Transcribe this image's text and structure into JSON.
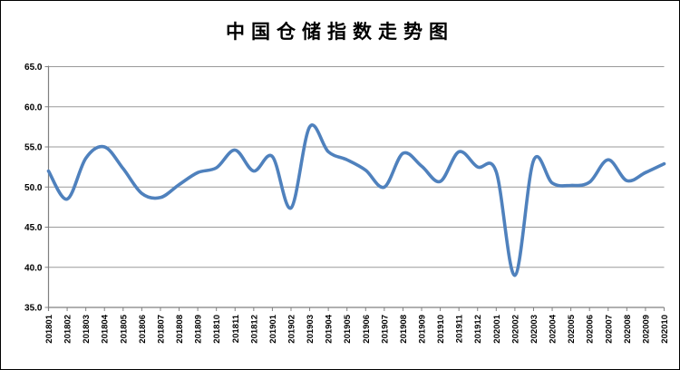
{
  "chart_data": {
    "type": "line",
    "title": "中国仓储指数走势图",
    "xlabel": "",
    "ylabel": "",
    "categories": [
      "201801",
      "201802",
      "201803",
      "201804",
      "201805",
      "201806",
      "201807",
      "201808",
      "201809",
      "201810",
      "201811",
      "201812",
      "201901",
      "201902",
      "201903",
      "201904",
      "201905",
      "201906",
      "201907",
      "201908",
      "201909",
      "201910",
      "201911",
      "201912",
      "202001",
      "202002",
      "202003",
      "202004",
      "202005",
      "202006",
      "202007",
      "202008",
      "202009",
      "202010"
    ],
    "series": [
      {
        "name": "仓储指数",
        "values": [
          52.0,
          48.5,
          53.6,
          55.0,
          52.3,
          49.2,
          48.7,
          50.3,
          51.8,
          52.4,
          54.6,
          52.0,
          53.8,
          47.4,
          57.5,
          54.4,
          53.4,
          52.1,
          50.0,
          54.2,
          52.6,
          50.7,
          54.4,
          52.5,
          51.9,
          39.0,
          53.3,
          50.5,
          50.2,
          50.6,
          53.4,
          50.8,
          51.8,
          52.9
        ]
      }
    ],
    "ylim": [
      35.0,
      65.0
    ],
    "y_ticks": [
      "65.0",
      "60.0",
      "55.0",
      "50.0",
      "45.0",
      "40.0",
      "35.0"
    ],
    "x_tick_rotation": 90,
    "grid": "horizontal",
    "legend": "none",
    "smooth": true,
    "line_color": "#4F81BD"
  }
}
